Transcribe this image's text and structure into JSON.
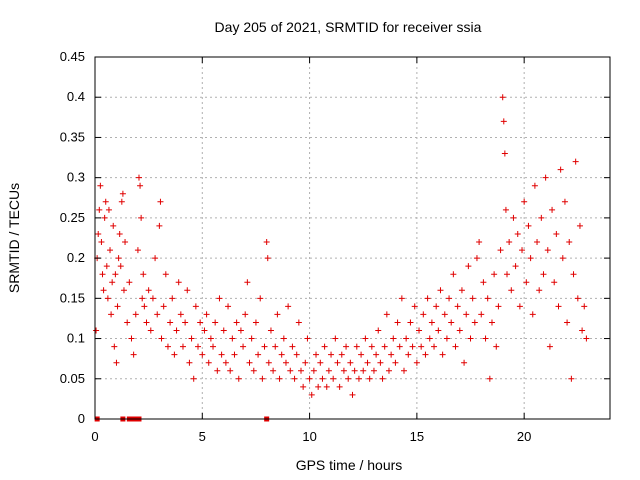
{
  "chart_data": {
    "type": "scatter",
    "title": "Day 205 of 2021, SRMTID for receiver ssia",
    "xlabel": "GPS time / hours",
    "ylabel": "SRMTID / TECUs",
    "xlim": [
      0,
      24
    ],
    "ylim": [
      0,
      0.45
    ],
    "xticks": [
      0,
      5,
      10,
      15,
      20
    ],
    "yticks": [
      0,
      0.05,
      0.1,
      0.15,
      0.2,
      0.25,
      0.3,
      0.35,
      0.4,
      0.45
    ],
    "grid": true,
    "marker": "+",
    "series_color": "#e00000",
    "series": [
      {
        "points": [
          [
            0.05,
            0.11
          ],
          [
            0.1,
            0.2
          ],
          [
            0.15,
            0.23
          ],
          [
            0.2,
            0.26
          ],
          [
            0.25,
            0.29
          ],
          [
            0.3,
            0.22
          ],
          [
            0.35,
            0.18
          ],
          [
            0.4,
            0.16
          ],
          [
            0.45,
            0.25
          ],
          [
            0.5,
            0.27
          ],
          [
            0.55,
            0.19
          ],
          [
            0.6,
            0.15
          ],
          [
            0.65,
            0.26
          ],
          [
            0.7,
            0.21
          ],
          [
            0.75,
            0.13
          ],
          [
            0.8,
            0.17
          ],
          [
            0.85,
            0.24
          ],
          [
            0.9,
            0.09
          ],
          [
            0.95,
            0.18
          ],
          [
            1.0,
            0.07
          ],
          [
            1.05,
            0.14
          ],
          [
            1.1,
            0.2
          ],
          [
            1.15,
            0.23
          ],
          [
            1.2,
            0.19
          ],
          [
            1.25,
            0.27
          ],
          [
            1.3,
            0.28
          ],
          [
            1.35,
            0.16
          ],
          [
            1.4,
            0.22
          ],
          [
            1.5,
            0.12
          ],
          [
            1.6,
            0.17
          ],
          [
            1.7,
            0.1
          ],
          [
            1.8,
            0.08
          ],
          [
            1.9,
            0.13
          ],
          [
            2.0,
            0.21
          ],
          [
            2.05,
            0.3
          ],
          [
            2.1,
            0.29
          ],
          [
            2.15,
            0.25
          ],
          [
            2.2,
            0.15
          ],
          [
            2.25,
            0.18
          ],
          [
            2.3,
            0.14
          ],
          [
            2.4,
            0.12
          ],
          [
            2.5,
            0.16
          ],
          [
            2.6,
            0.11
          ],
          [
            2.7,
            0.15
          ],
          [
            2.8,
            0.2
          ],
          [
            2.9,
            0.13
          ],
          [
            3.0,
            0.24
          ],
          [
            3.05,
            0.27
          ],
          [
            3.1,
            0.1
          ],
          [
            3.2,
            0.14
          ],
          [
            3.3,
            0.18
          ],
          [
            3.4,
            0.09
          ],
          [
            3.5,
            0.12
          ],
          [
            3.6,
            0.15
          ],
          [
            3.7,
            0.08
          ],
          [
            3.8,
            0.11
          ],
          [
            3.9,
            0.17
          ],
          [
            4.0,
            0.13
          ],
          [
            4.1,
            0.09
          ],
          [
            4.2,
            0.12
          ],
          [
            4.3,
            0.16
          ],
          [
            4.4,
            0.07
          ],
          [
            4.5,
            0.1
          ],
          [
            4.6,
            0.05
          ],
          [
            4.7,
            0.14
          ],
          [
            4.8,
            0.09
          ],
          [
            4.9,
            0.12
          ],
          [
            5.0,
            0.08
          ],
          [
            5.1,
            0.11
          ],
          [
            5.2,
            0.13
          ],
          [
            5.3,
            0.07
          ],
          [
            5.4,
            0.1
          ],
          [
            5.5,
            0.09
          ],
          [
            5.6,
            0.12
          ],
          [
            5.7,
            0.06
          ],
          [
            5.8,
            0.15
          ],
          [
            5.9,
            0.08
          ],
          [
            6.0,
            0.11
          ],
          [
            6.1,
            0.07
          ],
          [
            6.2,
            0.14
          ],
          [
            6.3,
            0.06
          ],
          [
            6.4,
            0.1
          ],
          [
            6.5,
            0.08
          ],
          [
            6.6,
            0.12
          ],
          [
            6.7,
            0.05
          ],
          [
            6.8,
            0.11
          ],
          [
            6.9,
            0.09
          ],
          [
            7.0,
            0.13
          ],
          [
            7.1,
            0.17
          ],
          [
            7.2,
            0.07
          ],
          [
            7.3,
            0.1
          ],
          [
            7.4,
            0.06
          ],
          [
            7.5,
            0.12
          ],
          [
            7.6,
            0.08
          ],
          [
            7.7,
            0.15
          ],
          [
            7.8,
            0.05
          ],
          [
            7.9,
            0.09
          ],
          [
            8.0,
            0.22
          ],
          [
            8.05,
            0.2
          ],
          [
            8.1,
            0.07
          ],
          [
            8.2,
            0.11
          ],
          [
            8.3,
            0.06
          ],
          [
            8.4,
            0.09
          ],
          [
            8.5,
            0.13
          ],
          [
            8.6,
            0.05
          ],
          [
            8.7,
            0.08
          ],
          [
            8.8,
            0.1
          ],
          [
            8.9,
            0.07
          ],
          [
            9.0,
            0.14
          ],
          [
            9.1,
            0.06
          ],
          [
            9.2,
            0.09
          ],
          [
            9.3,
            0.05
          ],
          [
            9.4,
            0.08
          ],
          [
            9.5,
            0.12
          ],
          [
            9.6,
            0.06
          ],
          [
            9.7,
            0.04
          ],
          [
            9.8,
            0.07
          ],
          [
            9.9,
            0.1
          ],
          [
            10.0,
            0.05
          ],
          [
            10.1,
            0.03
          ],
          [
            10.2,
            0.06
          ],
          [
            10.3,
            0.08
          ],
          [
            10.4,
            0.04
          ],
          [
            10.5,
            0.07
          ],
          [
            10.6,
            0.05
          ],
          [
            10.7,
            0.09
          ],
          [
            10.8,
            0.04
          ],
          [
            10.9,
            0.06
          ],
          [
            11.0,
            0.08
          ],
          [
            11.1,
            0.05
          ],
          [
            11.2,
            0.1
          ],
          [
            11.3,
            0.07
          ],
          [
            11.4,
            0.04
          ],
          [
            11.5,
            0.08
          ],
          [
            11.6,
            0.06
          ],
          [
            11.7,
            0.09
          ],
          [
            11.8,
            0.05
          ],
          [
            11.9,
            0.07
          ],
          [
            12.0,
            0.03
          ],
          [
            12.1,
            0.06
          ],
          [
            12.2,
            0.09
          ],
          [
            12.3,
            0.05
          ],
          [
            12.4,
            0.08
          ],
          [
            12.5,
            0.06
          ],
          [
            12.6,
            0.1
          ],
          [
            12.7,
            0.07
          ],
          [
            12.8,
            0.05
          ],
          [
            12.9,
            0.09
          ],
          [
            13.0,
            0.06
          ],
          [
            13.1,
            0.08
          ],
          [
            13.2,
            0.11
          ],
          [
            13.3,
            0.07
          ],
          [
            13.4,
            0.05
          ],
          [
            13.5,
            0.09
          ],
          [
            13.6,
            0.13
          ],
          [
            13.7,
            0.06
          ],
          [
            13.8,
            0.08
          ],
          [
            13.9,
            0.1
          ],
          [
            14.0,
            0.07
          ],
          [
            14.1,
            0.12
          ],
          [
            14.2,
            0.09
          ],
          [
            14.3,
            0.15
          ],
          [
            14.4,
            0.06
          ],
          [
            14.5,
            0.1
          ],
          [
            14.6,
            0.08
          ],
          [
            14.7,
            0.12
          ],
          [
            14.8,
            0.09
          ],
          [
            14.9,
            0.14
          ],
          [
            15.0,
            0.07
          ],
          [
            15.1,
            0.11
          ],
          [
            15.2,
            0.09
          ],
          [
            15.3,
            0.13
          ],
          [
            15.4,
            0.08
          ],
          [
            15.5,
            0.15
          ],
          [
            15.6,
            0.1
          ],
          [
            15.7,
            0.12
          ],
          [
            15.8,
            0.09
          ],
          [
            15.9,
            0.14
          ],
          [
            16.0,
            0.11
          ],
          [
            16.1,
            0.16
          ],
          [
            16.2,
            0.08
          ],
          [
            16.3,
            0.13
          ],
          [
            16.4,
            0.1
          ],
          [
            16.5,
            0.15
          ],
          [
            16.6,
            0.12
          ],
          [
            16.7,
            0.18
          ],
          [
            16.8,
            0.09
          ],
          [
            16.9,
            0.14
          ],
          [
            17.0,
            0.11
          ],
          [
            17.1,
            0.16
          ],
          [
            17.2,
            0.07
          ],
          [
            17.3,
            0.13
          ],
          [
            17.4,
            0.19
          ],
          [
            17.5,
            0.1
          ],
          [
            17.6,
            0.15
          ],
          [
            17.7,
            0.12
          ],
          [
            17.8,
            0.2
          ],
          [
            17.9,
            0.22
          ],
          [
            18.0,
            0.13
          ],
          [
            18.1,
            0.17
          ],
          [
            18.2,
            0.1
          ],
          [
            18.3,
            0.15
          ],
          [
            18.4,
            0.05
          ],
          [
            18.5,
            0.12
          ],
          [
            18.6,
            0.18
          ],
          [
            18.7,
            0.09
          ],
          [
            18.8,
            0.14
          ],
          [
            18.9,
            0.21
          ],
          [
            19.0,
            0.4
          ],
          [
            19.05,
            0.37
          ],
          [
            19.1,
            0.33
          ],
          [
            19.15,
            0.26
          ],
          [
            19.2,
            0.18
          ],
          [
            19.3,
            0.22
          ],
          [
            19.4,
            0.16
          ],
          [
            19.5,
            0.25
          ],
          [
            19.6,
            0.19
          ],
          [
            19.7,
            0.23
          ],
          [
            19.8,
            0.14
          ],
          [
            19.9,
            0.21
          ],
          [
            20.0,
            0.27
          ],
          [
            20.1,
            0.17
          ],
          [
            20.2,
            0.24
          ],
          [
            20.3,
            0.2
          ],
          [
            20.4,
            0.13
          ],
          [
            20.5,
            0.29
          ],
          [
            20.6,
            0.22
          ],
          [
            20.7,
            0.16
          ],
          [
            20.8,
            0.25
          ],
          [
            20.9,
            0.18
          ],
          [
            21.0,
            0.3
          ],
          [
            21.1,
            0.21
          ],
          [
            21.2,
            0.09
          ],
          [
            21.3,
            0.26
          ],
          [
            21.4,
            0.17
          ],
          [
            21.5,
            0.23
          ],
          [
            21.6,
            0.14
          ],
          [
            21.7,
            0.31
          ],
          [
            21.8,
            0.2
          ],
          [
            21.9,
            0.27
          ],
          [
            22.0,
            0.12
          ],
          [
            22.1,
            0.22
          ],
          [
            22.2,
            0.05
          ],
          [
            22.3,
            0.18
          ],
          [
            22.4,
            0.32
          ],
          [
            22.5,
            0.15
          ],
          [
            22.6,
            0.24
          ],
          [
            22.7,
            0.11
          ],
          [
            22.8,
            0.14
          ],
          [
            22.9,
            0.1
          ]
        ]
      }
    ],
    "zero_markers_x": [
      0.1,
      1.3,
      1.6,
      1.8,
      1.9,
      2.05,
      8.0
    ]
  }
}
